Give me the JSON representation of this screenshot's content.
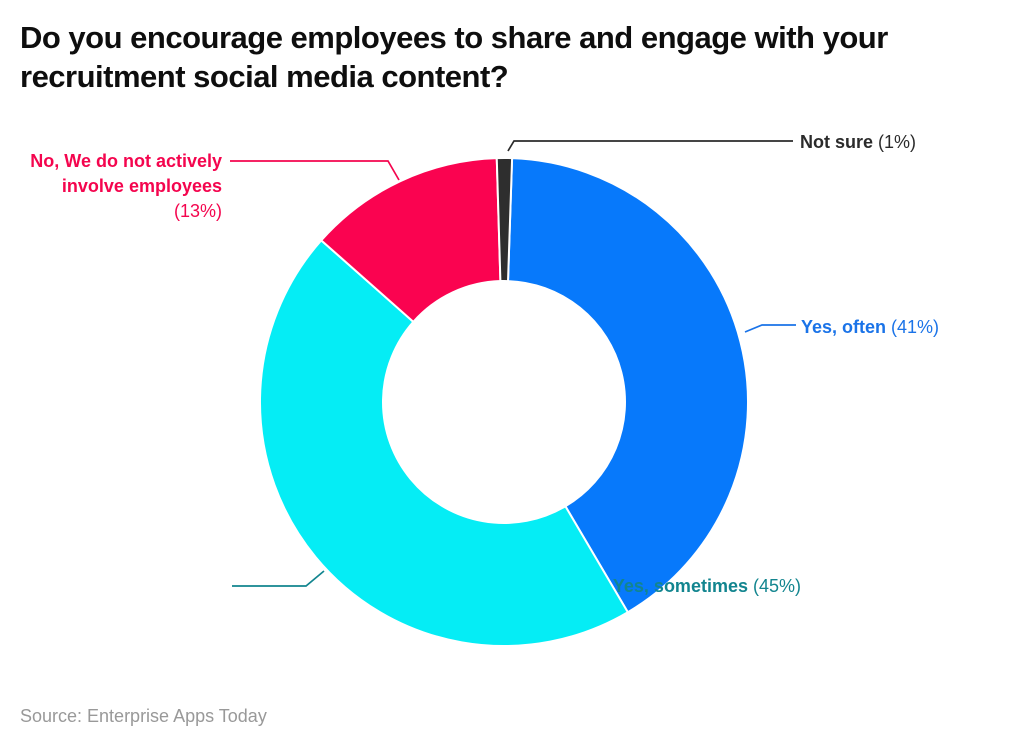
{
  "title_lines": [
    "Do you encourage employees to share and engage with your",
    "recruitment social media content?"
  ],
  "source": "Source: Enterprise Apps Today",
  "chart_data": {
    "type": "pie",
    "donut": true,
    "title": "Do you encourage employees to share and engage with your recruitment social media content?",
    "categories": [
      "Yes, often",
      "Yes, sometimes",
      "No, We do not actively involve employees",
      "Not sure"
    ],
    "values": [
      41,
      45,
      13,
      1
    ],
    "legend_position": "outside-callouts",
    "background": "#ffffff",
    "slices": [
      {
        "id": "yes-often",
        "label": "Yes, often",
        "pct": 41,
        "pct_label": "(41%)",
        "color": "#0779FB",
        "label_color": "#1A73E8"
      },
      {
        "id": "yes-sometimes",
        "label": "Yes, sometimes",
        "pct": 45,
        "pct_label": "(45%)",
        "color": "#05EDF5",
        "label_color": "#12858F"
      },
      {
        "id": "no-not-actively",
        "label": "No, We do not actively involve employees",
        "pct": 13,
        "pct_label": "(13%)",
        "color": "#FA0350",
        "label_color": "#F4054E"
      },
      {
        "id": "not-sure",
        "label": "Not sure",
        "pct": 1,
        "pct_label": "(1%)",
        "color": "#2E2E2E",
        "label_color": "#2B2B2B"
      }
    ]
  }
}
